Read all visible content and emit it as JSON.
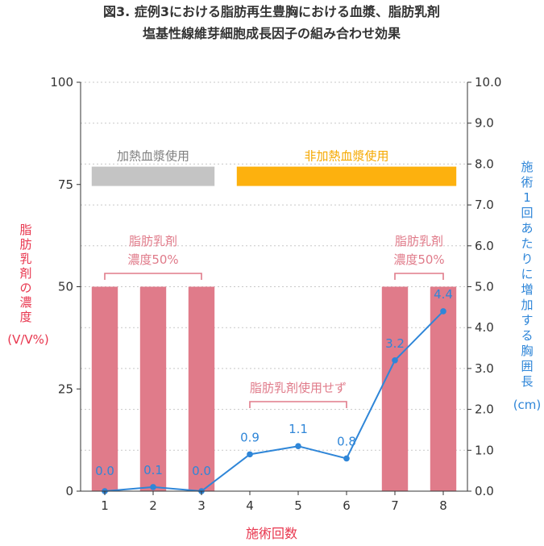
{
  "chart_data": {
    "type": "bar",
    "title_lines": [
      "図3. 症例3における脂肪再生豊胸における血漿、脂肪乳剤",
      "塩基性線維芽細胞成長因子の組み合わせ効果"
    ],
    "xlabel": "施術回数",
    "ylabel_left_lines": [
      "脂",
      "肪",
      "乳",
      "剤",
      "の",
      "濃",
      "度",
      "(V/V%)"
    ],
    "ylabel_right_lines": [
      "施",
      "術",
      "1",
      "回",
      "あ",
      "た",
      "り",
      "に",
      "増",
      "加",
      "す",
      "る",
      "胸",
      "囲",
      "長",
      "(cm)"
    ],
    "categories": [
      "1",
      "2",
      "3",
      "4",
      "5",
      "6",
      "7",
      "8"
    ],
    "ylim_left": [
      0,
      100
    ],
    "ylim_right": [
      0,
      10
    ],
    "yticks_left": [
      "0",
      "25",
      "50",
      "75",
      "100"
    ],
    "yticks_right": [
      "0.0",
      "1.0",
      "2.0",
      "3.0",
      "4.0",
      "5.0",
      "6.0",
      "7.0",
      "8.0",
      "9.0",
      "10.0"
    ],
    "grid": true,
    "series": [
      {
        "axis": "left",
        "kind": "bar",
        "color": "#e07b8a",
        "values": [
          50,
          50,
          50,
          0,
          0,
          0,
          50,
          50
        ]
      },
      {
        "axis": "right",
        "kind": "line",
        "color": "#2f86d8",
        "values": [
          0.0,
          0.1,
          0.0,
          0.9,
          1.1,
          0.8,
          3.2,
          4.4
        ],
        "labels": [
          "0.0",
          "0.1",
          "0.0",
          "0.9",
          "1.1",
          "0.8",
          "3.2",
          "4.4"
        ]
      }
    ],
    "range_bands": [
      {
        "label": "加熱血漿使用",
        "from": 1,
        "to": 3,
        "value": 77,
        "color": "#c4c4c4",
        "text_color": "#808080"
      },
      {
        "label": "非加熱血漿使用",
        "from": 4,
        "to": 8,
        "value": 77,
        "color": "#fdb10e",
        "text_color": "#f5a800"
      }
    ],
    "annotations": [
      {
        "lines": [
          "脂肪乳剤",
          "濃度50%"
        ],
        "from": 1,
        "to": 3
      },
      {
        "lines": [
          "脂肪乳剤使用せず"
        ],
        "from": 4,
        "to": 6
      },
      {
        "lines": [
          "脂肪乳剤",
          "濃度50%"
        ],
        "from": 7,
        "to": 8
      }
    ],
    "annotation_color": "#e07b8a",
    "left_label_color": "#e8364e",
    "right_label_color": "#2f86d8",
    "xlabel_color": "#e8364e"
  }
}
